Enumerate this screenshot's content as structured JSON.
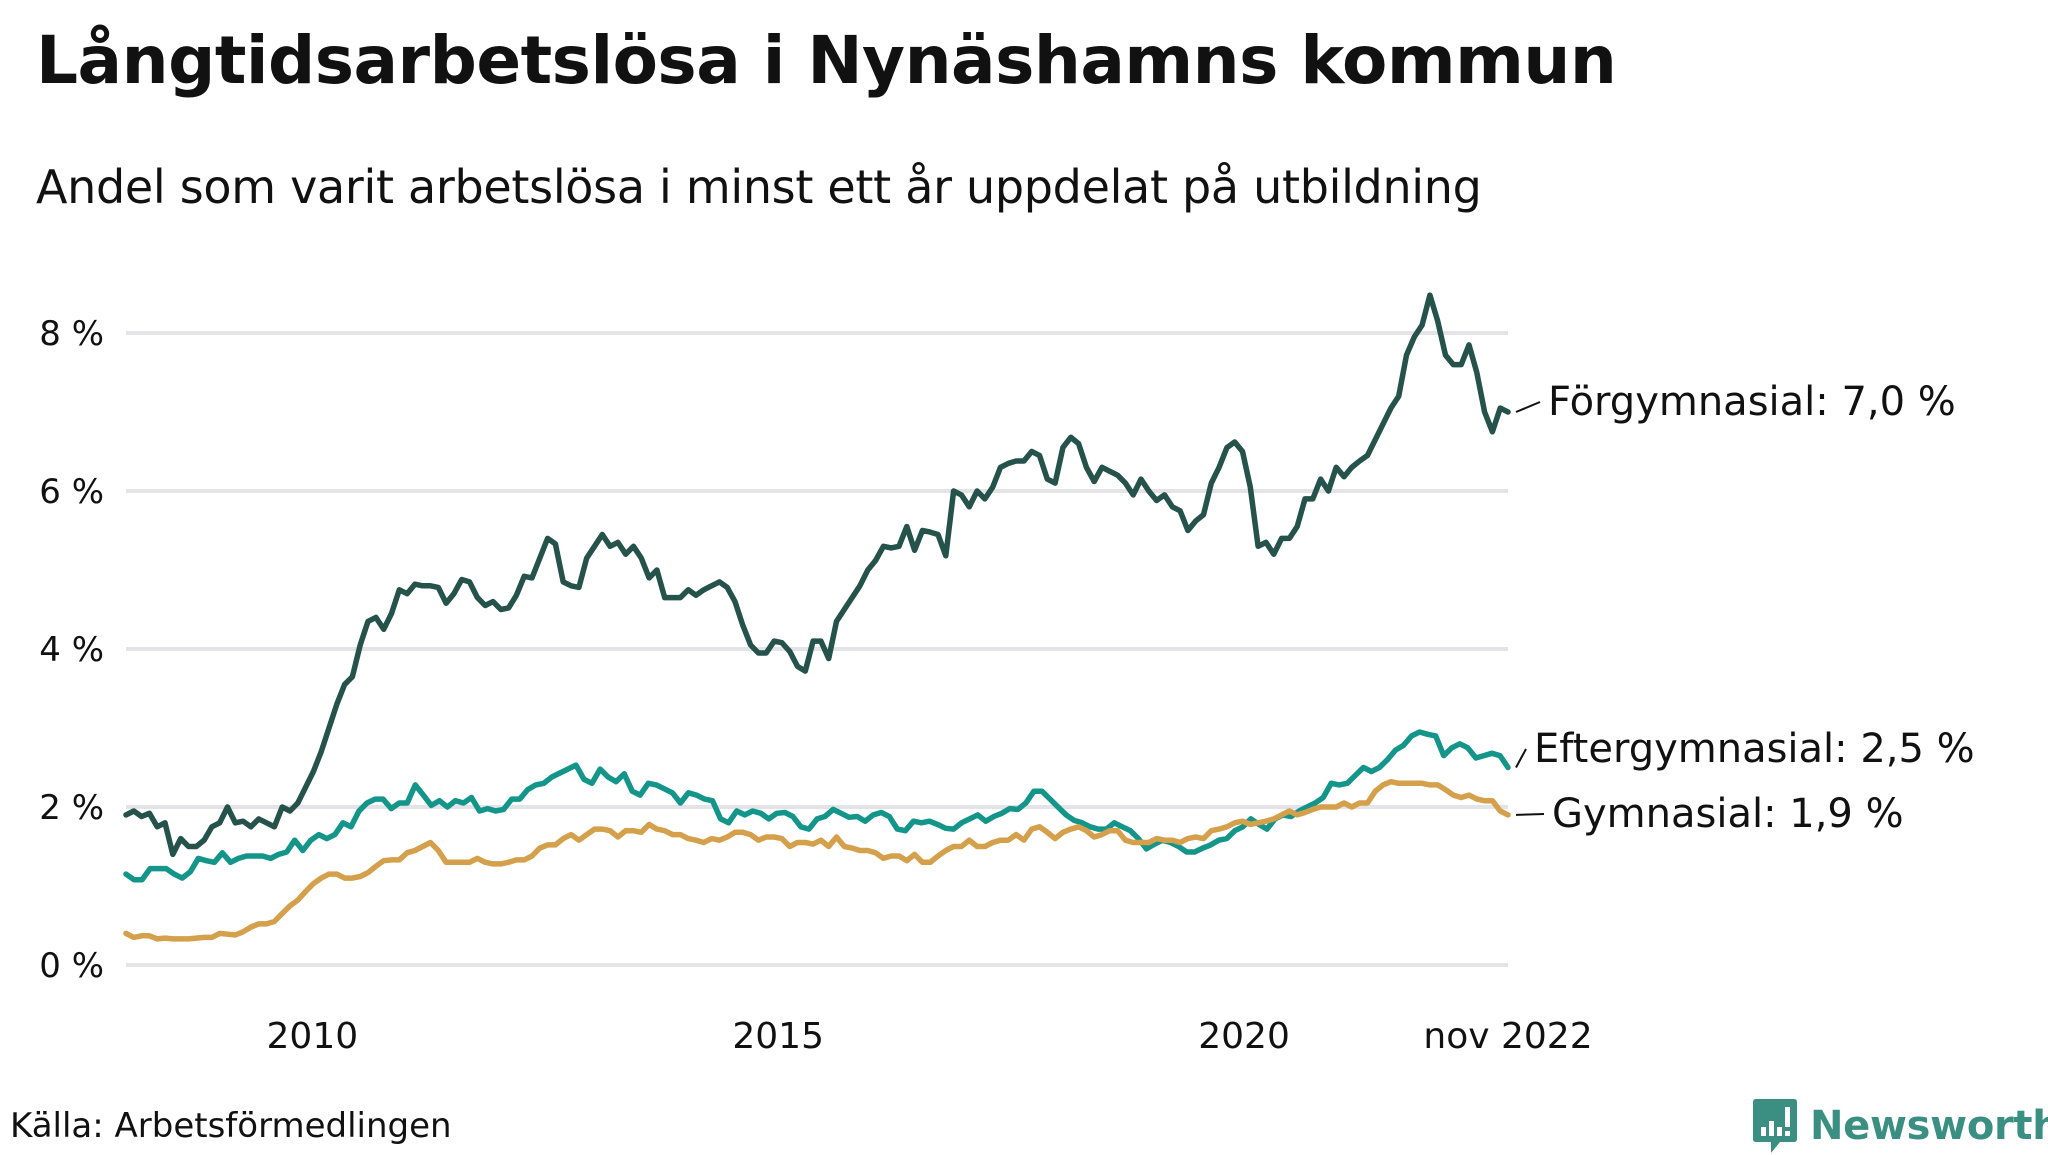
{
  "title": "Långtidsarbetslösa i Nynäshamns kommun",
  "subtitle": "Andel som varit arbetslösa i minst ett år uppdelat på utbildning",
  "source": "Källa: Arbetsförmedlingen",
  "brand": {
    "name": "Newsworthy",
    "color": "#3a8f82",
    "icon": "bar-chart-speech-bubble-icon"
  },
  "chart_data": {
    "type": "line",
    "title": "Långtidsarbetslösa i Nynäshamns kommun",
    "subtitle": "Andel som varit arbetslösa i minst ett år uppdelat på utbildning",
    "xlabel": "",
    "ylabel": "",
    "x_start": "2008-01",
    "x_end": "2022-11",
    "x_frequency": "monthly",
    "xlim": [
      2008.0,
      2022.833
    ],
    "ylim": [
      0,
      8.5
    ],
    "yticks": [
      0,
      2,
      4,
      6,
      8
    ],
    "ytick_labels": [
      "0 %",
      "2 %",
      "4 %",
      "6 %",
      "8 %"
    ],
    "xticks": [
      2010,
      2015,
      2020,
      2022.833
    ],
    "xtick_labels": [
      "2010",
      "2015",
      "2020",
      "nov 2022"
    ],
    "grid": true,
    "legend": "direct-labels-right",
    "colors": {
      "grid": "#e3e3e8"
    },
    "series": [
      {
        "name": "Förgymnasial",
        "label": "Förgymnasial: 7,0 %",
        "last_value": 7.0,
        "color": "#25524a",
        "values": [
          1.9,
          1.95,
          1.88,
          1.92,
          1.75,
          1.8,
          1.4,
          1.6,
          1.5,
          1.5,
          1.58,
          1.75,
          1.8,
          2.0,
          1.8,
          1.82,
          1.75,
          1.85,
          1.8,
          1.75,
          2.0,
          1.95,
          2.05,
          2.25,
          2.45,
          2.7,
          3.0,
          3.3,
          3.55,
          3.65,
          4.05,
          4.35,
          4.4,
          4.25,
          4.45,
          4.75,
          4.7,
          4.82,
          4.8,
          4.8,
          4.78,
          4.58,
          4.7,
          4.88,
          4.85,
          4.65,
          4.55,
          4.6,
          4.5,
          4.52,
          4.68,
          4.92,
          4.9,
          5.15,
          5.4,
          5.33,
          4.85,
          4.8,
          4.78,
          5.15,
          5.3,
          5.45,
          5.3,
          5.35,
          5.2,
          5.3,
          5.15,
          4.9,
          5.0,
          4.65,
          4.65,
          4.65,
          4.75,
          4.68,
          4.75,
          4.8,
          4.85,
          4.78,
          4.6,
          4.3,
          4.05,
          3.95,
          3.95,
          4.1,
          4.08,
          3.97,
          3.78,
          3.72,
          4.1,
          4.1,
          3.88,
          4.35,
          4.5,
          4.65,
          4.8,
          5.0,
          5.12,
          5.3,
          5.28,
          5.3,
          5.55,
          5.25,
          5.5,
          5.48,
          5.45,
          5.18,
          6.0,
          5.95,
          5.8,
          6.0,
          5.9,
          6.05,
          6.3,
          6.35,
          6.38,
          6.38,
          6.5,
          6.45,
          6.15,
          6.1,
          6.55,
          6.68,
          6.6,
          6.3,
          6.12,
          6.3,
          6.25,
          6.2,
          6.1,
          5.95,
          6.15,
          6.0,
          5.88,
          5.95,
          5.8,
          5.75,
          5.5,
          5.62,
          5.7,
          6.1,
          6.3,
          6.55,
          6.62,
          6.5,
          6.05,
          5.3,
          5.35,
          5.2,
          5.4,
          5.4,
          5.55,
          5.9,
          5.9,
          6.15,
          6.0,
          6.3,
          6.18,
          6.3,
          6.38,
          6.45,
          6.65,
          6.85,
          7.05,
          7.2,
          7.72,
          7.95,
          8.1,
          8.48,
          8.15,
          7.72,
          7.6,
          7.6,
          7.85,
          7.5,
          7.0,
          6.75,
          7.05,
          7.0
        ]
      },
      {
        "name": "Eftergymnasial",
        "label": "Eftergymnasial: 2,5 %",
        "last_value": 2.5,
        "color": "#14958a",
        "values": [
          1.15,
          1.08,
          1.08,
          1.22,
          1.22,
          1.22,
          1.15,
          1.1,
          1.18,
          1.35,
          1.32,
          1.3,
          1.42,
          1.3,
          1.35,
          1.38,
          1.38,
          1.38,
          1.35,
          1.4,
          1.43,
          1.58,
          1.45,
          1.58,
          1.65,
          1.6,
          1.65,
          1.8,
          1.75,
          1.95,
          2.05,
          2.1,
          2.1,
          1.98,
          2.05,
          2.05,
          2.28,
          2.15,
          2.02,
          2.08,
          2.0,
          2.08,
          2.05,
          2.12,
          1.95,
          1.98,
          1.95,
          1.97,
          2.1,
          2.1,
          2.22,
          2.28,
          2.3,
          2.38,
          2.43,
          2.48,
          2.53,
          2.35,
          2.3,
          2.48,
          2.38,
          2.32,
          2.42,
          2.2,
          2.15,
          2.3,
          2.28,
          2.23,
          2.18,
          2.05,
          2.18,
          2.15,
          2.1,
          2.08,
          1.85,
          1.8,
          1.95,
          1.9,
          1.95,
          1.92,
          1.85,
          1.92,
          1.93,
          1.88,
          1.75,
          1.72,
          1.85,
          1.88,
          1.97,
          1.92,
          1.87,
          1.88,
          1.82,
          1.9,
          1.93,
          1.88,
          1.72,
          1.7,
          1.82,
          1.8,
          1.82,
          1.78,
          1.73,
          1.72,
          1.8,
          1.85,
          1.9,
          1.82,
          1.88,
          1.92,
          1.98,
          1.97,
          2.05,
          2.2,
          2.2,
          2.1,
          2.0,
          1.9,
          1.83,
          1.8,
          1.75,
          1.72,
          1.72,
          1.8,
          1.75,
          1.7,
          1.6,
          1.47,
          1.53,
          1.58,
          1.55,
          1.5,
          1.43,
          1.43,
          1.48,
          1.52,
          1.58,
          1.6,
          1.7,
          1.75,
          1.85,
          1.78,
          1.72,
          1.85,
          1.9,
          1.88,
          1.95,
          2.0,
          2.05,
          2.12,
          2.3,
          2.28,
          2.3,
          2.4,
          2.5,
          2.45,
          2.5,
          2.6,
          2.72,
          2.78,
          2.9,
          2.95,
          2.92,
          2.9,
          2.65,
          2.75,
          2.8,
          2.75,
          2.62,
          2.65,
          2.68,
          2.65,
          2.5
        ]
      },
      {
        "name": "Gymnasial",
        "label": "Gymnasial: 1,9 %",
        "last_value": 1.9,
        "color": "#d5a04b",
        "values": [
          0.4,
          0.35,
          0.37,
          0.37,
          0.33,
          0.34,
          0.33,
          0.33,
          0.33,
          0.34,
          0.35,
          0.35,
          0.4,
          0.39,
          0.38,
          0.42,
          0.48,
          0.52,
          0.52,
          0.55,
          0.65,
          0.75,
          0.82,
          0.93,
          1.03,
          1.1,
          1.15,
          1.15,
          1.1,
          1.1,
          1.12,
          1.17,
          1.25,
          1.32,
          1.33,
          1.33,
          1.42,
          1.45,
          1.5,
          1.55,
          1.45,
          1.3,
          1.3,
          1.3,
          1.3,
          1.35,
          1.3,
          1.28,
          1.28,
          1.3,
          1.33,
          1.33,
          1.38,
          1.48,
          1.52,
          1.52,
          1.6,
          1.65,
          1.58,
          1.65,
          1.72,
          1.72,
          1.7,
          1.62,
          1.7,
          1.7,
          1.68,
          1.78,
          1.72,
          1.7,
          1.65,
          1.65,
          1.6,
          1.58,
          1.55,
          1.6,
          1.58,
          1.62,
          1.68,
          1.68,
          1.65,
          1.58,
          1.62,
          1.62,
          1.6,
          1.5,
          1.55,
          1.55,
          1.53,
          1.58,
          1.5,
          1.62,
          1.5,
          1.48,
          1.45,
          1.45,
          1.42,
          1.35,
          1.38,
          1.38,
          1.32,
          1.4,
          1.3,
          1.3,
          1.38,
          1.45,
          1.5,
          1.5,
          1.58,
          1.5,
          1.5,
          1.55,
          1.58,
          1.58,
          1.65,
          1.58,
          1.72,
          1.75,
          1.68,
          1.6,
          1.68,
          1.72,
          1.75,
          1.7,
          1.62,
          1.65,
          1.7,
          1.7,
          1.58,
          1.55,
          1.55,
          1.55,
          1.6,
          1.58,
          1.58,
          1.55,
          1.6,
          1.62,
          1.6,
          1.7,
          1.72,
          1.75,
          1.8,
          1.82,
          1.78,
          1.8,
          1.82,
          1.85,
          1.9,
          1.95,
          1.9,
          1.93,
          1.97,
          2.0,
          2.0,
          2.0,
          2.05,
          2.0,
          2.05,
          2.05,
          2.2,
          2.28,
          2.32,
          2.3,
          2.3,
          2.3,
          2.3,
          2.28,
          2.28,
          2.22,
          2.15,
          2.12,
          2.15,
          2.1,
          2.08,
          2.08,
          1.95,
          1.9
        ]
      }
    ]
  }
}
